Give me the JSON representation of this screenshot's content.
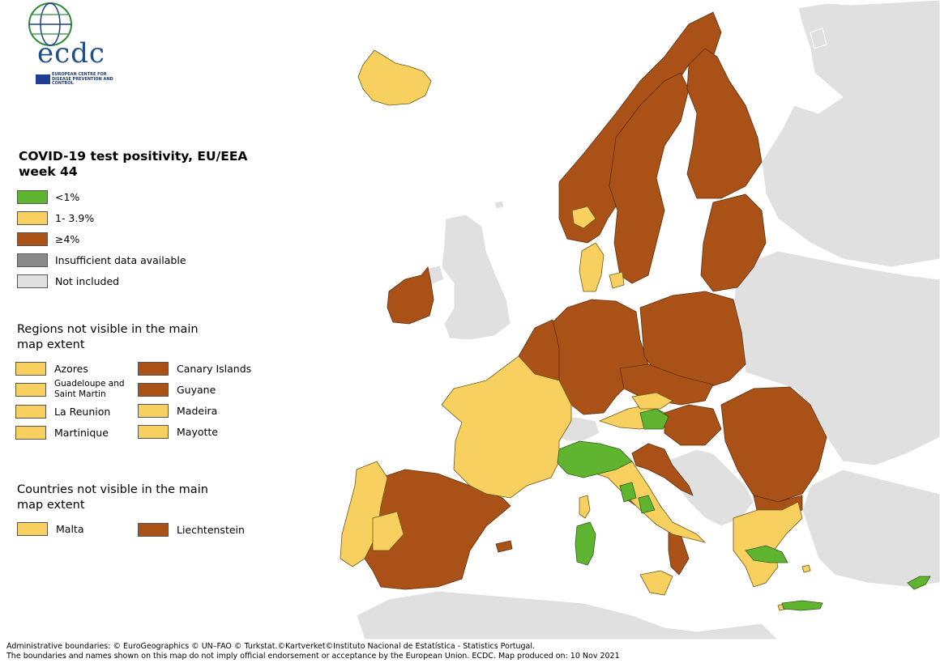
{
  "logo": {
    "wordmark": "ecdc",
    "subtitle": "EUROPEAN CENTRE FOR DISEASE PREVENTION AND CONTROL"
  },
  "title": "COVID-19 test positivity, EU/EEA week 44",
  "colors": {
    "below_1": "#5fb52f",
    "from_1_to_3_9": "#f7d060",
    "at_least_4": "#aa5118",
    "insufficient": "#8a8a8a",
    "not_included": "#e0e0e0",
    "sea": "#ffffff",
    "border": "#5a5a5a"
  },
  "legend": [
    {
      "label": "<1%",
      "color": "#5fb52f"
    },
    {
      "label": "1- 3.9%",
      "color": "#f7d060"
    },
    {
      "label": "≥4%",
      "color": "#aa5118"
    },
    {
      "label": "Insufficient data available",
      "color": "#8a8a8a"
    },
    {
      "label": "Not included",
      "color": "#e0e0e0"
    }
  ],
  "regions_not_visible": {
    "title": "Regions not visible in the main map extent",
    "items": [
      {
        "label": "Azores",
        "color": "#f7d060"
      },
      {
        "label": "Canary Islands",
        "color": "#aa5118"
      },
      {
        "label": "Guadeloupe and Saint Martin",
        "color": "#f7d060"
      },
      {
        "label": "Guyane",
        "color": "#aa5118"
      },
      {
        "label": "La Reunion",
        "color": "#f7d060"
      },
      {
        "label": "Madeira",
        "color": "#f7d060"
      },
      {
        "label": "Martinique",
        "color": "#f7d060"
      },
      {
        "label": "Mayotte",
        "color": "#f7d060"
      }
    ]
  },
  "countries_not_visible": {
    "title": "Countries not visible in the main map extent",
    "items": [
      {
        "label": "Malta",
        "color": "#f7d060"
      },
      {
        "label": "Liechtenstein",
        "color": "#aa5118"
      }
    ]
  },
  "footer": {
    "line1": "Administrative boundaries: © EuroGeographics © UN–FAO © Turkstat.©Kartverket©Instituto Nacional de Estatística - Statistics Portugal.",
    "line2": "The boundaries and names shown on this map do not imply official endorsement or acceptance by the European Union. ECDC. Map produced on: 10 Nov 2021"
  }
}
